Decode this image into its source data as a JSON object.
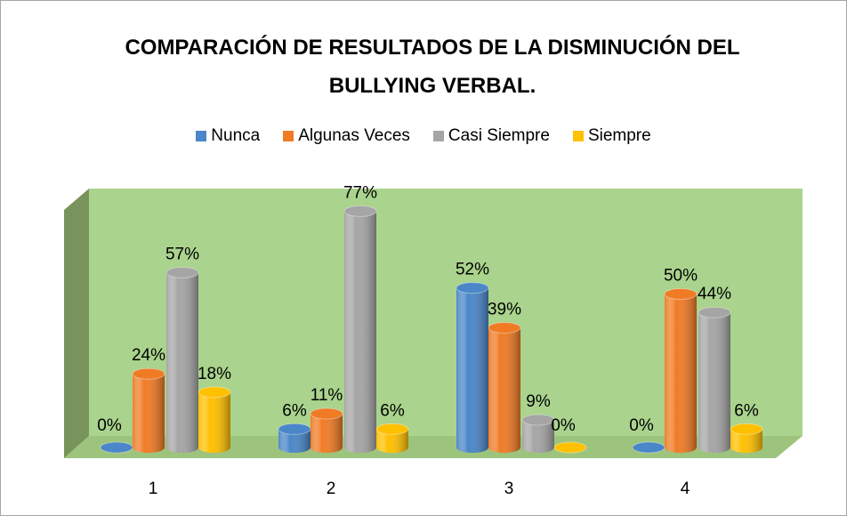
{
  "chart_data": {
    "type": "bar",
    "title": "COMPARACIÓN DE RESULTADOS DE LA DISMINUCIÓN DEL BULLYING VERBAL.",
    "categories": [
      "1",
      "2",
      "3",
      "4"
    ],
    "series": [
      {
        "name": "Nunca",
        "color": "#4a86c8",
        "values": [
          0,
          6,
          52,
          0
        ],
        "value_labels": [
          "0%",
          "6%",
          "52%",
          "0%"
        ]
      },
      {
        "name": "Algunas Veces",
        "color": "#f07b25",
        "values": [
          24,
          11,
          39,
          50
        ],
        "value_labels": [
          "24%",
          "11%",
          "39%",
          "50%"
        ]
      },
      {
        "name": "Casi Siempre",
        "color": "#a5a5a5",
        "values": [
          57,
          77,
          9,
          44
        ],
        "value_labels": [
          "57%",
          "77%",
          "9%",
          "44%"
        ]
      },
      {
        "name": "Siempre",
        "color": "#ffc000",
        "values": [
          18,
          6,
          0,
          6
        ],
        "value_labels": [
          "18%",
          "6%",
          "0%",
          "6%"
        ]
      }
    ],
    "ylim": [
      0,
      80
    ],
    "legend": "top"
  }
}
